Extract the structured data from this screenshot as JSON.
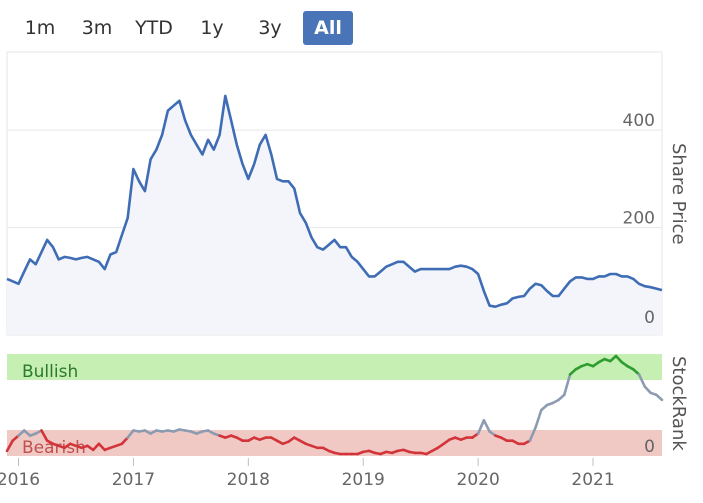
{
  "range_buttons": [
    {
      "label": "1m",
      "active": false
    },
    {
      "label": "3m",
      "active": false
    },
    {
      "label": "YTD",
      "active": false
    },
    {
      "label": "1y",
      "active": false
    },
    {
      "label": "3y",
      "active": false
    },
    {
      "label": "All",
      "active": true
    }
  ],
  "colors": {
    "price_line": "#3f6db5",
    "price_fill": "#f3f5fa",
    "bullish_band": "#c6efb4",
    "bearish_band": "#f0c9c5",
    "rank_bullish": "#2e9c2e",
    "rank_neutral": "#8d9bb0",
    "rank_bearish": "#d2343a",
    "active_button": "#4a74b8"
  },
  "chart_data": [
    {
      "type": "line",
      "ylabel": "Share Price",
      "ylim": [
        -20,
        560
      ],
      "y_ticks": [
        0,
        200,
        400
      ],
      "y_tick_labels": [
        "0",
        "200",
        "400"
      ],
      "x_ticks": [
        2016,
        2017,
        2018,
        2019,
        2020,
        2021
      ],
      "x_tick_labels": [
        "2016",
        "2017",
        "2018",
        "2019",
        "2020",
        "2021"
      ],
      "xlim": [
        2015.9,
        2021.6
      ],
      "grid": true,
      "series": [
        {
          "x": [
            2015.9,
            2015.95,
            2016.0,
            2016.05,
            2016.1,
            2016.15,
            2016.2,
            2016.25,
            2016.3,
            2016.35,
            2016.4,
            2016.45,
            2016.5,
            2016.55,
            2016.6,
            2016.65,
            2016.7,
            2016.75,
            2016.8,
            2016.85,
            2016.9,
            2016.95,
            2017.0,
            2017.05,
            2017.1,
            2017.15,
            2017.2,
            2017.25,
            2017.3,
            2017.35,
            2017.4,
            2017.45,
            2017.5,
            2017.55,
            2017.6,
            2017.65,
            2017.7,
            2017.75,
            2017.8,
            2017.85,
            2017.9,
            2017.95,
            2018.0,
            2018.05,
            2018.1,
            2018.15,
            2018.2,
            2018.25,
            2018.3,
            2018.35,
            2018.4,
            2018.45,
            2018.5,
            2018.55,
            2018.6,
            2018.65,
            2018.7,
            2018.75,
            2018.8,
            2018.85,
            2018.9,
            2018.95,
            2019.0,
            2019.05,
            2019.1,
            2019.15,
            2019.2,
            2019.25,
            2019.3,
            2019.35,
            2019.4,
            2019.45,
            2019.5,
            2019.55,
            2019.6,
            2019.65,
            2019.7,
            2019.75,
            2019.8,
            2019.85,
            2019.9,
            2019.95,
            2020.0,
            2020.05,
            2020.1,
            2020.15,
            2020.2,
            2020.25,
            2020.3,
            2020.35,
            2020.4,
            2020.45,
            2020.5,
            2020.55,
            2020.6,
            2020.65,
            2020.7,
            2020.75,
            2020.8,
            2020.85,
            2020.9,
            2020.95,
            2021.0,
            2021.05,
            2021.1,
            2021.15,
            2021.2,
            2021.25,
            2021.3,
            2021.35,
            2021.4,
            2021.45,
            2021.5,
            2021.55,
            2021.6
          ],
          "values": [
            95,
            90,
            85,
            110,
            135,
            125,
            150,
            175,
            160,
            135,
            140,
            138,
            135,
            138,
            140,
            135,
            130,
            115,
            145,
            150,
            185,
            220,
            320,
            295,
            275,
            340,
            360,
            390,
            440,
            450,
            460,
            420,
            390,
            370,
            350,
            380,
            360,
            390,
            470,
            420,
            370,
            330,
            300,
            330,
            370,
            390,
            350,
            300,
            295,
            295,
            280,
            230,
            210,
            180,
            160,
            155,
            165,
            175,
            160,
            160,
            140,
            130,
            115,
            100,
            100,
            110,
            120,
            125,
            130,
            130,
            120,
            110,
            115,
            115,
            115,
            115,
            115,
            115,
            120,
            122,
            120,
            115,
            105,
            70,
            40,
            38,
            42,
            45,
            55,
            58,
            60,
            75,
            85,
            82,
            70,
            60,
            60,
            75,
            90,
            98,
            98,
            95,
            95,
            100,
            100,
            105,
            105,
            100,
            100,
            95,
            85,
            80,
            78,
            75,
            72
          ]
        }
      ]
    },
    {
      "type": "line",
      "ylabel": "StockRank",
      "ylim": [
        0,
        100
      ],
      "y_ticks": [
        0
      ],
      "y_tick_labels": [
        "0"
      ],
      "bands": [
        {
          "label": "Bullish",
          "range": [
            80,
            100
          ]
        },
        {
          "label": "Bearish",
          "range": [
            0,
            20
          ]
        }
      ],
      "series": [
        {
          "x": [
            2015.9,
            2015.95,
            2016.0,
            2016.05,
            2016.1,
            2016.15,
            2016.2,
            2016.25,
            2016.3,
            2016.35,
            2016.4,
            2016.45,
            2016.5,
            2016.55,
            2016.6,
            2016.65,
            2016.7,
            2016.75,
            2016.8,
            2016.85,
            2016.9,
            2016.95,
            2017.0,
            2017.05,
            2017.1,
            2017.15,
            2017.2,
            2017.25,
            2017.3,
            2017.35,
            2017.4,
            2017.45,
            2017.5,
            2017.55,
            2017.6,
            2017.65,
            2017.7,
            2017.75,
            2017.8,
            2017.85,
            2017.9,
            2017.95,
            2018.0,
            2018.05,
            2018.1,
            2018.15,
            2018.2,
            2018.25,
            2018.3,
            2018.35,
            2018.4,
            2018.45,
            2018.5,
            2018.55,
            2018.6,
            2018.65,
            2018.7,
            2018.75,
            2018.8,
            2018.85,
            2018.9,
            2018.95,
            2019.0,
            2019.05,
            2019.1,
            2019.15,
            2019.2,
            2019.25,
            2019.3,
            2019.35,
            2019.4,
            2019.45,
            2019.5,
            2019.55,
            2019.6,
            2019.65,
            2019.7,
            2019.75,
            2019.8,
            2019.85,
            2019.9,
            2019.95,
            2020.0,
            2020.05,
            2020.1,
            2020.15,
            2020.2,
            2020.25,
            2020.3,
            2020.35,
            2020.4,
            2020.45,
            2020.5,
            2020.55,
            2020.6,
            2020.65,
            2020.7,
            2020.75,
            2020.8,
            2020.85,
            2020.9,
            2020.95,
            2021.0,
            2021.05,
            2021.1,
            2021.15,
            2021.2,
            2021.25,
            2021.3,
            2021.35,
            2021.4,
            2021.45,
            2021.5,
            2021.55,
            2021.6
          ],
          "values": [
            5,
            15,
            20,
            25,
            20,
            22,
            25,
            15,
            12,
            10,
            8,
            12,
            10,
            8,
            10,
            6,
            12,
            6,
            8,
            10,
            12,
            18,
            25,
            24,
            25,
            22,
            25,
            24,
            25,
            24,
            26,
            25,
            24,
            22,
            24,
            25,
            22,
            20,
            18,
            20,
            18,
            15,
            15,
            18,
            16,
            18,
            18,
            15,
            12,
            14,
            18,
            15,
            12,
            10,
            8,
            8,
            5,
            3,
            2,
            2,
            2,
            2,
            4,
            5,
            3,
            2,
            4,
            3,
            5,
            6,
            4,
            3,
            3,
            2,
            5,
            8,
            12,
            16,
            18,
            16,
            18,
            18,
            22,
            35,
            24,
            20,
            18,
            15,
            15,
            12,
            12,
            15,
            28,
            45,
            50,
            52,
            55,
            60,
            80,
            85,
            88,
            90,
            88,
            92,
            95,
            93,
            98,
            92,
            88,
            85,
            80,
            68,
            62,
            60,
            55
          ]
        }
      ]
    }
  ]
}
